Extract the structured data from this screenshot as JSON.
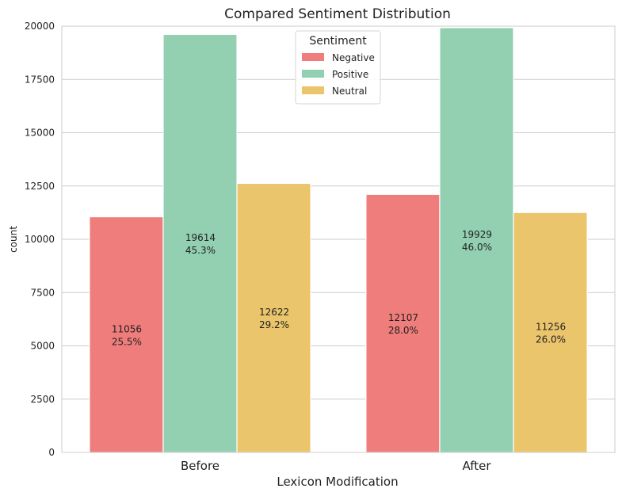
{
  "chart_data": {
    "type": "bar",
    "title": "Compared Sentiment Distribution",
    "xlabel": "Lexicon Modification",
    "ylabel": "count",
    "categories": [
      "Before",
      "After"
    ],
    "ylim": [
      0,
      20000
    ],
    "yticks": [
      "0",
      "2500",
      "5000",
      "7500",
      "10000",
      "12500",
      "15000",
      "17500",
      "20000"
    ],
    "grid": true,
    "legend": {
      "title": "Sentiment",
      "placement": "top-center"
    },
    "series": [
      {
        "name": "Negative",
        "color": "#ee7d7b",
        "values": [
          11056,
          12107
        ],
        "labels": [
          "11056",
          "12107"
        ],
        "percents": [
          "25.5%",
          "28.0%"
        ]
      },
      {
        "name": "Positive",
        "color": "#93cfb1",
        "values": [
          19614,
          19929
        ],
        "labels": [
          "19614",
          "19929"
        ],
        "percents": [
          "45.3%",
          "46.0%"
        ]
      },
      {
        "name": "Neutral",
        "color": "#ebc56c",
        "values": [
          12622,
          11256
        ],
        "labels": [
          "12622",
          "11256"
        ],
        "percents": [
          "29.2%",
          "26.0%"
        ]
      }
    ]
  }
}
